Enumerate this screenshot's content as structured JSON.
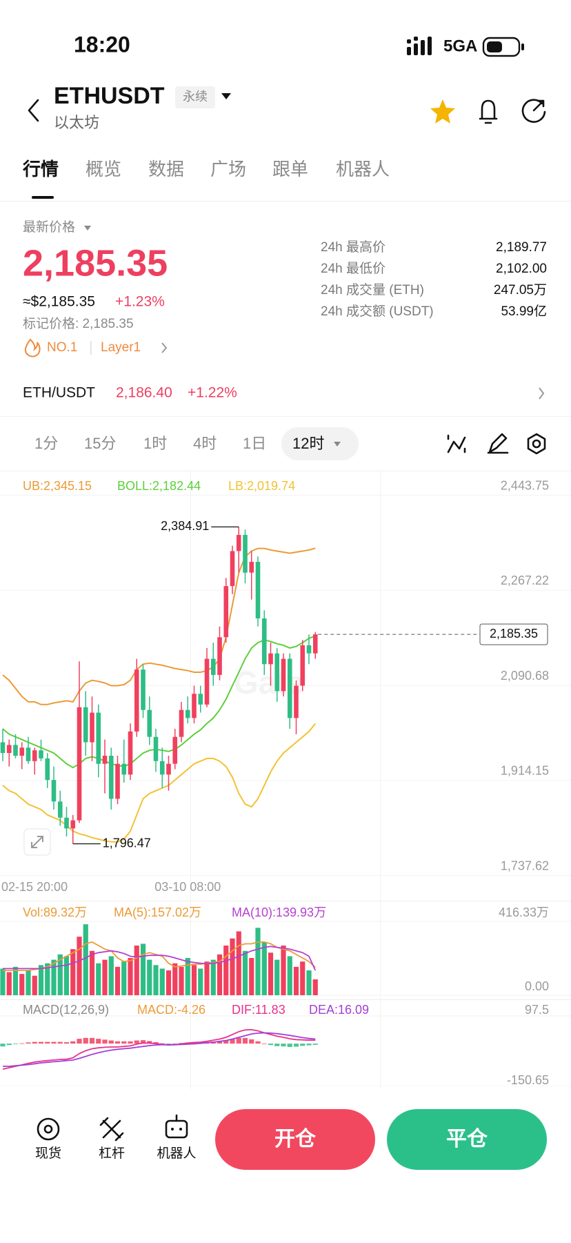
{
  "status_bar": {
    "time": "18:20",
    "network": "5GA"
  },
  "header": {
    "symbol": "ETHUSDT",
    "tag": "永续",
    "name": "以太坊"
  },
  "tabs": [
    "行情",
    "概览",
    "数据",
    "广场",
    "跟单",
    "机器人"
  ],
  "price_panel": {
    "label": "最新价格",
    "price": "2,185.35",
    "usd": "≈$2,185.35",
    "change": "+1.23%",
    "mark_price": "标记价格: 2,185.35",
    "rank": "NO.1",
    "sector": "Layer1",
    "stats": [
      [
        "24h 最高价",
        "2,189.77"
      ],
      [
        "24h 最低价",
        "2,102.00"
      ],
      [
        "24h 成交量 (ETH)",
        "247.05万"
      ],
      [
        "24h 成交额 (USDT)",
        "53.99亿"
      ]
    ]
  },
  "spot": {
    "pair": "ETH/USDT",
    "price": "2,186.40",
    "change": "+1.22%"
  },
  "intervals": [
    "1分",
    "15分",
    "1时",
    "4时",
    "1日",
    "12时"
  ],
  "chart_data": [
    {
      "type": "candlestick",
      "watermark": "Gate",
      "up_color": "#f0405e",
      "down_color": "#2ebd85",
      "ylim": [
        1737.62,
        2443.75
      ],
      "yticks": [
        {
          "value": 2443.75,
          "label": "2,443.75"
        },
        {
          "value": 2267.22,
          "label": "2,267.22"
        },
        {
          "value": 2090.68,
          "label": "2,090.68"
        },
        {
          "value": 1914.15,
          "label": "1,914.15"
        },
        {
          "value": 1737.62,
          "label": "1,737.62"
        }
      ],
      "categories": [
        "02-15 20:00",
        null,
        null,
        null,
        null,
        null,
        null,
        null,
        null,
        null,
        null,
        null,
        null,
        null,
        null,
        null,
        null,
        null,
        null,
        null,
        null,
        null,
        null,
        null,
        null,
        null,
        null,
        null,
        null,
        "03-10 08:00",
        null,
        null,
        null,
        null,
        null,
        null,
        null,
        null,
        null,
        null,
        null,
        null,
        null,
        null,
        null,
        null,
        null,
        null,
        null,
        null
      ],
      "open": [
        1985,
        1965,
        1980,
        1960,
        1975,
        1950,
        1970,
        1955,
        1915,
        1875,
        1845,
        1825,
        1840,
        2050,
        1985,
        2040,
        1945,
        1960,
        1880,
        1945,
        1925,
        2005,
        2120,
        2045,
        1995,
        1950,
        1925,
        1945,
        1995,
        2045,
        2030,
        2075,
        2055,
        2140,
        2110,
        2180,
        2275,
        2340,
        2370,
        2300,
        2320,
        2215,
        2130,
        2150,
        2080,
        2140,
        2030,
        2090,
        2165,
        2150
      ],
      "high": [
        2010,
        1990,
        2000,
        1985,
        1995,
        1975,
        1990,
        1965,
        1940,
        1895,
        1865,
        1850,
        2135,
        2080,
        2070,
        2055,
        1990,
        1975,
        1960,
        1990,
        2020,
        2140,
        2130,
        2070,
        2010,
        1975,
        1960,
        2010,
        2060,
        2070,
        2090,
        2090,
        2160,
        2170,
        2200,
        2290,
        2350,
        2384.91,
        2380,
        2340,
        2330,
        2230,
        2170,
        2160,
        2150,
        2150,
        2100,
        2175,
        2185,
        2189.77
      ],
      "low": [
        1950,
        1940,
        1955,
        1935,
        1945,
        1925,
        1950,
        1900,
        1860,
        1830,
        1810,
        1796.47,
        1835,
        1960,
        1950,
        1920,
        1890,
        1860,
        1870,
        1910,
        1915,
        1995,
        2030,
        1980,
        1930,
        1900,
        1895,
        1935,
        1985,
        2020,
        2020,
        2040,
        2050,
        2090,
        2100,
        2170,
        2260,
        2300,
        2280,
        2250,
        2200,
        2110,
        2090,
        2060,
        2070,
        2010,
        2000,
        2080,
        2130,
        2140
      ],
      "close": [
        1965,
        1980,
        1960,
        1975,
        1950,
        1970,
        1955,
        1915,
        1875,
        1845,
        1825,
        1840,
        2050,
        1985,
        2040,
        1945,
        1960,
        1880,
        1945,
        1925,
        2005,
        2120,
        2045,
        1995,
        1950,
        1925,
        1945,
        1995,
        2045,
        2030,
        2075,
        2055,
        2140,
        2110,
        2180,
        2275,
        2340,
        2370,
        2300,
        2320,
        2215,
        2130,
        2150,
        2080,
        2140,
        2030,
        2090,
        2165,
        2150,
        2185.35
      ],
      "series": [
        {
          "name": "UB:2,345.15",
          "color": "#ec9a35",
          "values": [
            2110,
            2100,
            2085,
            2070,
            2060,
            2060,
            2055,
            2055,
            2058,
            2060,
            2062,
            2060,
            2080,
            2095,
            2100,
            2098,
            2095,
            2090,
            2090,
            2092,
            2100,
            2120,
            2130,
            2132,
            2130,
            2128,
            2125,
            2122,
            2120,
            2118,
            2115,
            2115,
            2118,
            2125,
            2140,
            2180,
            2240,
            2300,
            2330,
            2340,
            2345,
            2345,
            2342,
            2340,
            2338,
            2336,
            2338,
            2340,
            2342,
            2345.15
          ]
        },
        {
          "name": "BOLL:2,182.44",
          "color": "#5ccf3a",
          "values": [
            2010,
            2000,
            1995,
            1990,
            1985,
            1980,
            1975,
            1970,
            1965,
            1955,
            1945,
            1938,
            1945,
            1955,
            1958,
            1955,
            1950,
            1945,
            1942,
            1940,
            1945,
            1955,
            1965,
            1970,
            1972,
            1970,
            1968,
            1972,
            1980,
            1990,
            2000,
            2008,
            2020,
            2030,
            2045,
            2065,
            2090,
            2115,
            2140,
            2160,
            2170,
            2175,
            2172,
            2168,
            2165,
            2160,
            2163,
            2170,
            2178,
            2182.44
          ]
        },
        {
          "name": "LB:2,019.74",
          "color": "#f1c232",
          "values": [
            1905,
            1895,
            1890,
            1880,
            1870,
            1865,
            1860,
            1850,
            1845,
            1840,
            1830,
            1820,
            1815,
            1812,
            1808,
            1805,
            1802,
            1800,
            1800,
            1805,
            1820,
            1850,
            1880,
            1890,
            1895,
            1900,
            1905,
            1915,
            1925,
            1935,
            1945,
            1950,
            1955,
            1955,
            1950,
            1940,
            1920,
            1890,
            1870,
            1865,
            1880,
            1905,
            1930,
            1950,
            1965,
            1975,
            1985,
            1995,
            2005,
            2019.74
          ]
        }
      ],
      "high_label": {
        "value": 2384.91,
        "label": "2,384.91"
      },
      "low_label": {
        "value": 1796.47,
        "label": "1,796.47"
      },
      "last_price": {
        "value": 2185.35,
        "label": "2,185.35"
      }
    },
    {
      "type": "bar",
      "up_color": "#f0405e",
      "down_color": "#2ebd85",
      "ylim": [
        0,
        416.33
      ],
      "yticks": [
        {
          "value": 416.33,
          "label": "416.33万"
        },
        {
          "value": 0,
          "label": "0.00"
        }
      ],
      "series": [
        {
          "name": "Vol:89.32万",
          "kind": "bar",
          "color": "#ec9a35",
          "values": [
            150,
            130,
            160,
            120,
            140,
            110,
            170,
            180,
            200,
            230,
            220,
            260,
            330,
            400,
            250,
            180,
            200,
            220,
            160,
            190,
            210,
            280,
            290,
            200,
            170,
            150,
            140,
            180,
            160,
            210,
            170,
            150,
            190,
            200,
            230,
            280,
            320,
            360,
            250,
            210,
            380,
            300,
            240,
            200,
            280,
            220,
            160,
            190,
            140,
            89.32
          ]
        },
        {
          "name": "MA(5):157.02万",
          "kind": "line",
          "color": "#ec9a35",
          "values": [
            140,
            140,
            140,
            140,
            140,
            145,
            150,
            160,
            180,
            200,
            220,
            240,
            260,
            290,
            300,
            280,
            260,
            250,
            210,
            190,
            195,
            210,
            230,
            240,
            230,
            220,
            180,
            160,
            165,
            170,
            175,
            175,
            180,
            185,
            190,
            220,
            250,
            280,
            290,
            290,
            300,
            300,
            290,
            270,
            260,
            250,
            230,
            210,
            190,
            157.02
          ]
        },
        {
          "name": "MA(10):139.93万",
          "kind": "line",
          "color": "#b53fd0",
          "values": [
            150,
            150,
            150,
            150,
            150,
            150,
            150,
            155,
            160,
            165,
            170,
            180,
            195,
            210,
            230,
            240,
            245,
            250,
            245,
            235,
            220,
            215,
            220,
            225,
            225,
            225,
            220,
            210,
            200,
            190,
            185,
            180,
            178,
            180,
            185,
            195,
            205,
            220,
            235,
            250,
            260,
            270,
            275,
            270,
            265,
            260,
            250,
            240,
            220,
            139.93
          ]
        }
      ]
    },
    {
      "type": "bar",
      "title": "MACD(12,26,9)",
      "up_color": "#f0405e",
      "down_color": "#2ebd85",
      "ylim": [
        -150.65,
        97.5
      ],
      "yticks": [
        97.5,
        -150.65
      ],
      "series": [
        {
          "name": "MACD:-4.26",
          "kind": "bar",
          "color": "#ec9a35",
          "values": [
            -10,
            -5,
            -2,
            1,
            4,
            6,
            6,
            6,
            6,
            6,
            5,
            8,
            17,
            20,
            20,
            17,
            14,
            11,
            8,
            8,
            8,
            11,
            12,
            9,
            5,
            1,
            -1,
            0,
            2,
            4,
            5,
            4,
            5,
            7,
            8,
            11,
            16,
            20,
            20,
            15,
            8,
            0,
            -5,
            -9,
            -10,
            -12,
            -11,
            -8,
            -6,
            -4.26
          ]
        },
        {
          "name": "DIF:11.83",
          "kind": "line",
          "color": "#e8308a",
          "values": [
            -90,
            -85,
            -80,
            -75,
            -70,
            -65,
            -62,
            -60,
            -58,
            -56,
            -55,
            -50,
            -35,
            -25,
            -18,
            -15,
            -13,
            -12,
            -12,
            -10,
            -8,
            -2,
            2,
            2,
            0,
            -3,
            -5,
            -4,
            -1,
            2,
            4,
            5,
            8,
            12,
            16,
            22,
            32,
            42,
            48,
            49,
            45,
            38,
            32,
            26,
            22,
            17,
            14,
            13,
            12,
            11.83
          ]
        },
        {
          "name": "DEA:16.09",
          "kind": "line",
          "color": "#a23fd6",
          "values": [
            -80,
            -80,
            -78,
            -76,
            -74,
            -71,
            -68,
            -66,
            -64,
            -62,
            -60,
            -58,
            -52,
            -45,
            -38,
            -32,
            -27,
            -23,
            -20,
            -18,
            -16,
            -13,
            -10,
            -7,
            -5,
            -4,
            -4,
            -4,
            -3,
            -2,
            -1,
            1,
            3,
            5,
            8,
            11,
            16,
            22,
            28,
            34,
            37,
            38,
            37,
            35,
            32,
            29,
            25,
            21,
            18,
            16.09
          ]
        }
      ]
    }
  ],
  "bottom_bar": {
    "nav": [
      "现货",
      "杠杆",
      "机器人"
    ],
    "buttons": [
      "开仓",
      "平仓"
    ]
  }
}
